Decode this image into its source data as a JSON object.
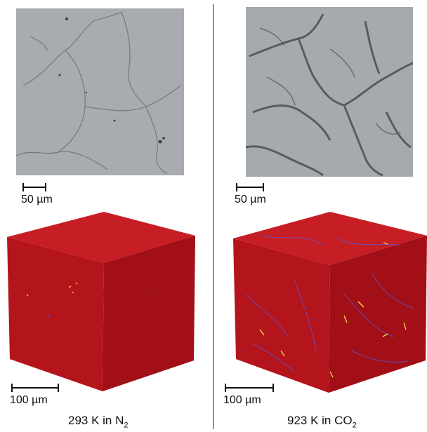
{
  "panels": {
    "left": {
      "micro_scale": "50 µm",
      "cube_scale": "100 µm",
      "caption_main": "293 K in N",
      "caption_sub": "2"
    },
    "right": {
      "micro_scale": "50 µm",
      "cube_scale": "100 µm",
      "caption_main": "923 K in CO",
      "caption_sub": "2"
    }
  },
  "colors": {
    "micrograph_bg": "#a9acb0",
    "cube_top": "#c91c24",
    "cube_left": "#b5141c",
    "cube_right": "#a50f17",
    "crack_yellow": "#f2e24b",
    "crack_blue": "#5b58d6"
  }
}
